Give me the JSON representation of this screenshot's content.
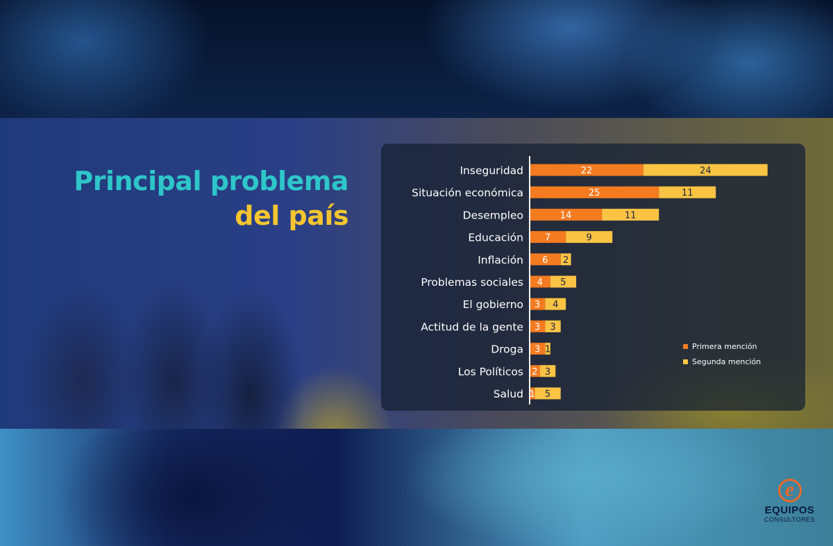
{
  "title": {
    "line1": "Principal problema",
    "line2": "del país"
  },
  "colors": {
    "primera": "#f47b20",
    "segunda": "#fbc344",
    "title_line1": "#2ec6c9",
    "title_line2": "#f4c52e"
  },
  "legend": {
    "primera": "Primera mención",
    "segunda": "Segunda mención"
  },
  "logo": {
    "mark": "e",
    "name": "EQUIPOS",
    "sub": "CONSULTORES"
  },
  "chart_data": {
    "type": "bar",
    "orientation": "horizontal",
    "stacked": true,
    "categories": [
      "Inseguridad",
      "Situación económica",
      "Desempleo",
      "Educación",
      "Inflación",
      "Problemas sociales",
      "El gobierno",
      "Actitud de la gente",
      "Droga",
      "Los Políticos",
      "Salud"
    ],
    "series": [
      {
        "name": "Primera mención",
        "color": "#f47b20",
        "values": [
          22,
          25,
          14,
          7,
          6,
          4,
          3,
          3,
          3,
          2,
          1
        ]
      },
      {
        "name": "Segunda mención",
        "color": "#fbc344",
        "values": [
          24,
          11,
          11,
          9,
          2,
          5,
          4,
          3,
          1,
          3,
          5
        ]
      }
    ],
    "legend_position": "right",
    "grid": false
  }
}
